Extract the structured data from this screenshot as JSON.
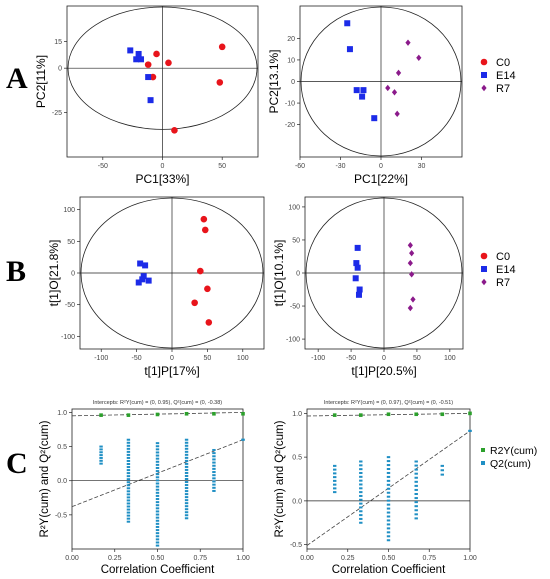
{
  "panel_letters": [
    "A",
    "B",
    "C"
  ],
  "colors": {
    "C0": "#e8141b",
    "E14": "#1c2be8",
    "R7": "#8b1a8b",
    "R2Y": "#2ca02c",
    "Q2": "#1f8fc4"
  },
  "legend_ab": [
    {
      "label": "C0",
      "color": "#e8141b",
      "marker": "circle"
    },
    {
      "label": "E14",
      "color": "#1c2be8",
      "marker": "square"
    },
    {
      "label": "R7",
      "color": "#8b1a8b",
      "marker": "diamond"
    }
  ],
  "legend_c": [
    {
      "label": "R2Y(cum)",
      "color": "#2ca02c"
    },
    {
      "label": "Q2(cum)",
      "color": "#1f8fc4"
    }
  ],
  "chart_data": [
    {
      "id": "A1",
      "type": "scatter",
      "xlabel": "PC1[33%]",
      "ylabel": "PC2[11%]",
      "xlim": [
        -80,
        80
      ],
      "ylim": [
        -50,
        35
      ],
      "xticks": [
        -50,
        0,
        50
      ],
      "yticks": [
        15,
        0,
        -25
      ],
      "ytick_labels": [
        "15",
        "0",
        "-25"
      ],
      "series": [
        {
          "name": "C0",
          "marker": "circle",
          "points": [
            [
              -12,
              2
            ],
            [
              -8,
              -5
            ],
            [
              -5,
              8
            ],
            [
              5,
              3
            ],
            [
              10,
              -35
            ],
            [
              48,
              -8
            ],
            [
              50,
              12
            ]
          ]
        },
        {
          "name": "E14",
          "marker": "square",
          "points": [
            [
              -27,
              10
            ],
            [
              -22,
              5
            ],
            [
              -20,
              8
            ],
            [
              -18,
              5
            ],
            [
              -12,
              -5
            ],
            [
              -10,
              -18
            ]
          ]
        }
      ]
    },
    {
      "id": "A2",
      "type": "scatter",
      "xlabel": "PC1[22%]",
      "ylabel": "PC2[13.1%]",
      "xlim": [
        -60,
        60
      ],
      "ylim": [
        -35,
        35
      ],
      "xticks": [
        -60,
        -30,
        0,
        30
      ],
      "yticks": [
        20,
        10,
        0,
        -10,
        -20
      ],
      "series": [
        {
          "name": "E14",
          "marker": "square",
          "points": [
            [
              -25,
              27
            ],
            [
              -23,
              15
            ],
            [
              -18,
              -4
            ],
            [
              -14,
              -7
            ],
            [
              -13,
              -4
            ],
            [
              -5,
              -17
            ]
          ]
        },
        {
          "name": "R7",
          "marker": "diamond",
          "points": [
            [
              5,
              -3
            ],
            [
              10,
              -5
            ],
            [
              12,
              -15
            ],
            [
              13,
              4
            ],
            [
              20,
              18
            ],
            [
              28,
              11
            ]
          ]
        }
      ]
    },
    {
      "id": "B1",
      "type": "scatter",
      "xlabel": "t[1]P[17%]",
      "ylabel": "t[1]O[21.8%]",
      "xlim": [
        -130,
        130
      ],
      "ylim": [
        -120,
        120
      ],
      "xticks": [
        -100,
        -50,
        0,
        50,
        100
      ],
      "yticks": [
        100,
        50,
        0,
        -50,
        -100
      ],
      "series": [
        {
          "name": "C0",
          "marker": "circle",
          "points": [
            [
              45,
              85
            ],
            [
              47,
              68
            ],
            [
              40,
              3
            ],
            [
              32,
              -47
            ],
            [
              50,
              -25
            ],
            [
              52,
              -78
            ]
          ]
        },
        {
          "name": "E14",
          "marker": "square",
          "points": [
            [
              -45,
              15
            ],
            [
              -38,
              12
            ],
            [
              -40,
              -5
            ],
            [
              -47,
              -15
            ],
            [
              -42,
              -10
            ],
            [
              -33,
              -12
            ]
          ]
        }
      ]
    },
    {
      "id": "B2",
      "type": "scatter",
      "xlabel": "t[1]P[20.5%]",
      "ylabel": "t[1]O[10.1%]",
      "xlim": [
        -120,
        120
      ],
      "ylim": [
        -115,
        115
      ],
      "xticks": [
        -100,
        -50,
        0,
        50,
        100
      ],
      "yticks": [
        100,
        50,
        0,
        -50,
        -100
      ],
      "series": [
        {
          "name": "E14",
          "marker": "square",
          "points": [
            [
              -40,
              38
            ],
            [
              -42,
              15
            ],
            [
              -40,
              8
            ],
            [
              -43,
              -8
            ],
            [
              -37,
              -25
            ],
            [
              -38,
              -33
            ]
          ]
        },
        {
          "name": "R7",
          "marker": "diamond",
          "points": [
            [
              40,
              42
            ],
            [
              42,
              30
            ],
            [
              40,
              15
            ],
            [
              42,
              -2
            ],
            [
              44,
              -40
            ],
            [
              40,
              -53
            ]
          ]
        }
      ]
    },
    {
      "id": "C1",
      "type": "scatter",
      "title": "Intercepts: R²Y(cum) = (0, 0.95), Q²(cum) = (0, -0.38)",
      "xlabel": "Correlation Coefficient",
      "ylabel": "R²Y(cum) and Q²(cum)",
      "xlim": [
        0,
        1
      ],
      "ylim": [
        -1,
        1.05
      ],
      "xticks": [
        0.0,
        0.25,
        0.5,
        0.75,
        1.0
      ],
      "yticks": [
        1.0,
        0.5,
        0.0,
        -0.5
      ],
      "xtick_labels": [
        "0.00",
        "0.25",
        "0.50",
        "0.75",
        "1.00"
      ],
      "ytick_labels": [
        "1.0",
        "0.5",
        "0.0",
        "-0.5"
      ],
      "r2y_line": [
        [
          0,
          0.95
        ],
        [
          1,
          1.0
        ]
      ],
      "q2_line": [
        [
          0,
          -0.38
        ],
        [
          1,
          0.6
        ]
      ],
      "series": [
        {
          "name": "R2Y(cum)",
          "x": [
            0.17,
            0.33,
            0.5,
            0.67,
            0.83,
            1.0
          ],
          "y": [
            0.96,
            0.96,
            0.97,
            0.98,
            0.98,
            0.98
          ]
        },
        {
          "name": "Q2(cum)",
          "x": [
            0.17,
            0.33,
            0.5,
            0.67,
            0.83,
            1.0
          ],
          "ymin": [
            0.25,
            -0.6,
            -0.95,
            -0.55,
            -0.15,
            0.6
          ],
          "ymax": [
            0.5,
            0.6,
            0.55,
            0.6,
            0.45,
            0.6
          ]
        }
      ]
    },
    {
      "id": "C2",
      "type": "scatter",
      "title": "Intercepts: R²Y(cum) = (0, 0.97), Q²(cum) = (0, -0.51)",
      "xlabel": "Correlation Coefficient",
      "ylabel": "R²Y(cum) and Q²(cum)",
      "xlim": [
        0,
        1
      ],
      "ylim": [
        -0.55,
        1.05
      ],
      "xticks": [
        0.0,
        0.25,
        0.5,
        0.75,
        1.0
      ],
      "yticks": [
        1.0,
        0.5,
        0.0,
        -0.5
      ],
      "xtick_labels": [
        "0.00",
        "0.25",
        "0.50",
        "0.75",
        "1.00"
      ],
      "ytick_labels": [
        "1.0",
        "0.5",
        "0.0",
        "-0.5"
      ],
      "r2y_line": [
        [
          0,
          0.97
        ],
        [
          1,
          1.0
        ]
      ],
      "q2_line": [
        [
          0,
          -0.51
        ],
        [
          1,
          0.8
        ]
      ],
      "series": [
        {
          "name": "R2Y(cum)",
          "x": [
            0.17,
            0.33,
            0.5,
            0.67,
            0.83,
            1.0
          ],
          "y": [
            0.98,
            0.98,
            0.99,
            0.99,
            0.99,
            1.0
          ]
        },
        {
          "name": "Q2(cum)",
          "x": [
            0.17,
            0.33,
            0.5,
            0.67,
            0.83,
            1.0
          ],
          "ymin": [
            0.1,
            -0.25,
            -0.45,
            -0.2,
            0.3,
            0.8
          ],
          "ymax": [
            0.4,
            0.45,
            0.5,
            0.45,
            0.4,
            0.8
          ]
        }
      ]
    }
  ]
}
